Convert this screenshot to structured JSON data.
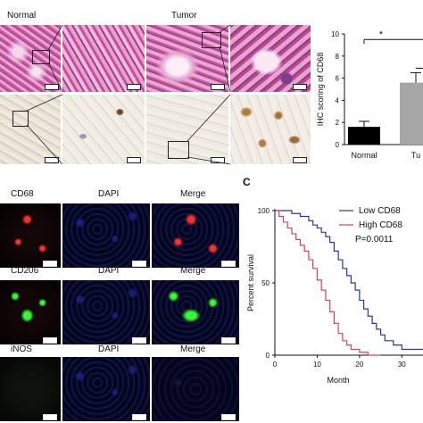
{
  "panel_a": {
    "col_labels": [
      "Normal",
      "Tumor"
    ]
  },
  "panel_b": {
    "chart_data": {
      "type": "bar",
      "categories": [
        "Normal",
        "Tumor"
      ],
      "visible_category_text": [
        "Normal",
        "Tu"
      ],
      "values": [
        1.6,
        5.6
      ],
      "errors": [
        0.5,
        0.9
      ],
      "ylabel": "IHC scoring of CD68",
      "ylim": [
        0,
        10
      ],
      "yticks": [
        0,
        2,
        4,
        6,
        8,
        10
      ],
      "significance": "*",
      "colors": {
        "Normal": "#000000",
        "Tumor": "#a6a6a6"
      }
    }
  },
  "panel_c": {
    "letter": "C",
    "chart_data": {
      "type": "line",
      "step": true,
      "xlabel": "Month",
      "ylabel": "Percent survival",
      "xlim": [
        0,
        35
      ],
      "ylim": [
        0,
        100
      ],
      "xticks": [
        0,
        10,
        20,
        30
      ],
      "yticks": [
        0,
        50,
        100
      ],
      "series": [
        {
          "name": "Low CD68",
          "color": "#2b35a8",
          "x": [
            0,
            2,
            4,
            6,
            8,
            9,
            10,
            11,
            12,
            13,
            14,
            15,
            16,
            17,
            18,
            19,
            20,
            21,
            22,
            23,
            24,
            25,
            26,
            28,
            30,
            33,
            35
          ],
          "y": [
            100,
            100,
            98,
            96,
            93,
            90,
            88,
            85,
            82,
            78,
            72,
            66,
            60,
            55,
            50,
            45,
            38,
            32,
            27,
            22,
            18,
            14,
            10,
            7,
            4,
            4,
            4
          ]
        },
        {
          "name": "High CD68",
          "color": "#d9424f",
          "x": [
            0,
            1,
            2,
            3,
            4,
            5,
            6,
            7,
            8,
            9,
            10,
            11,
            12,
            13,
            14,
            15,
            16,
            17,
            18,
            20,
            22,
            25
          ],
          "y": [
            100,
            96,
            92,
            88,
            84,
            80,
            76,
            72,
            66,
            60,
            52,
            45,
            38,
            30,
            22,
            15,
            10,
            7,
            4,
            2,
            0,
            0
          ]
        }
      ],
      "annotation": "P=0.0011",
      "legend_position": "top-right"
    }
  },
  "panel_d": {
    "rows": [
      {
        "markers": [
          "CD68",
          "DAPI",
          "Merge"
        ],
        "color": "#ff3030"
      },
      {
        "markers": [
          "CD206",
          "DAPI",
          "Merge"
        ],
        "color": "#33ff33"
      },
      {
        "markers": [
          "iNOS",
          "DAPI",
          "Merge"
        ],
        "color": "#33ff33"
      }
    ]
  }
}
